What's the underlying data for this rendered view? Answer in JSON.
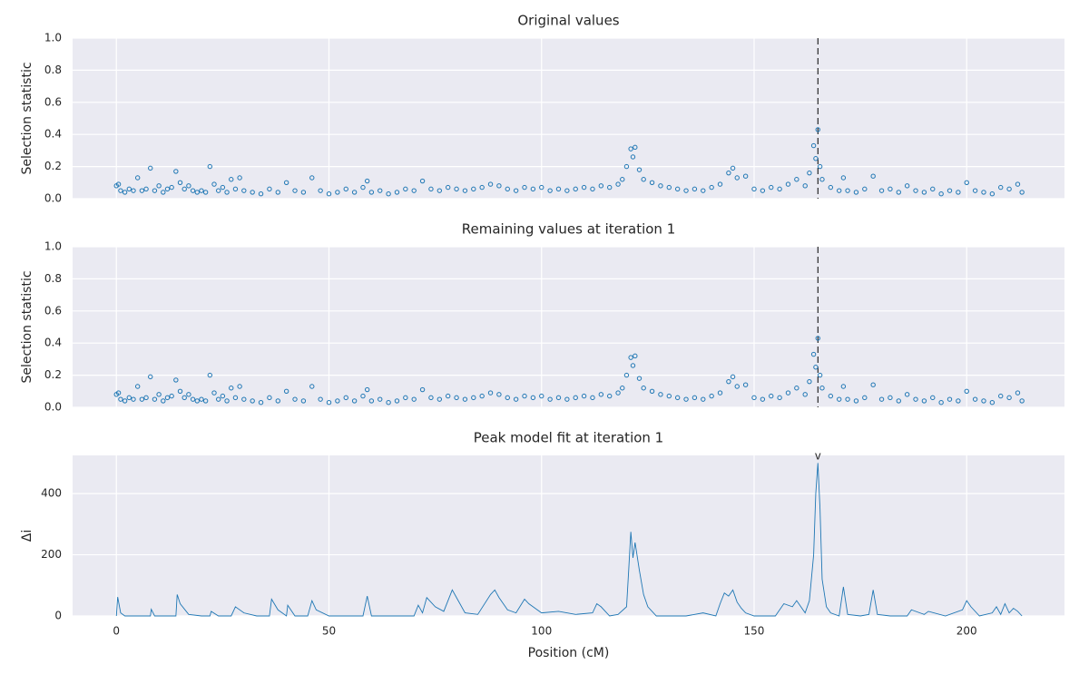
{
  "chart_data": [
    {
      "type": "scatter",
      "title": "Original values",
      "y_label": "Selection statistic",
      "color": "#1f77b4",
      "grid": true,
      "vline_x": 165,
      "x": [
        0,
        0.5,
        1,
        2,
        3,
        4,
        5,
        6,
        7,
        8,
        9,
        10,
        11,
        12,
        13,
        14,
        15,
        16,
        17,
        18,
        19,
        20,
        21,
        22,
        23,
        24,
        25,
        26,
        27,
        28,
        29,
        30,
        32,
        34,
        36,
        38,
        40,
        42,
        44,
        46,
        48,
        50,
        52,
        54,
        56,
        58,
        59,
        60,
        62,
        64,
        66,
        68,
        70,
        72,
        74,
        76,
        78,
        80,
        82,
        84,
        86,
        88,
        90,
        92,
        94,
        96,
        98,
        100,
        102,
        104,
        106,
        108,
        110,
        112,
        114,
        116,
        118,
        119,
        120,
        121,
        121.5,
        122,
        123,
        124,
        126,
        128,
        130,
        132,
        134,
        136,
        138,
        140,
        142,
        144,
        145,
        146,
        148,
        150,
        152,
        154,
        156,
        158,
        160,
        162,
        163,
        164,
        164.5,
        165,
        165.5,
        166,
        168,
        170,
        171,
        172,
        174,
        176,
        178,
        180,
        182,
        184,
        186,
        188,
        190,
        192,
        194,
        196,
        198,
        200,
        202,
        204,
        206,
        208,
        210,
        212,
        213
      ],
      "values": [
        0.08,
        0.09,
        0.05,
        0.04,
        0.06,
        0.05,
        0.13,
        0.05,
        0.06,
        0.19,
        0.05,
        0.08,
        0.04,
        0.06,
        0.07,
        0.17,
        0.1,
        0.06,
        0.08,
        0.05,
        0.04,
        0.05,
        0.04,
        0.2,
        0.09,
        0.05,
        0.07,
        0.04,
        0.12,
        0.06,
        0.13,
        0.05,
        0.04,
        0.03,
        0.06,
        0.04,
        0.1,
        0.05,
        0.04,
        0.13,
        0.05,
        0.03,
        0.04,
        0.06,
        0.04,
        0.07,
        0.11,
        0.04,
        0.05,
        0.03,
        0.04,
        0.06,
        0.05,
        0.11,
        0.06,
        0.05,
        0.07,
        0.06,
        0.05,
        0.06,
        0.07,
        0.09,
        0.08,
        0.06,
        0.05,
        0.07,
        0.06,
        0.07,
        0.05,
        0.06,
        0.05,
        0.06,
        0.07,
        0.06,
        0.08,
        0.07,
        0.09,
        0.12,
        0.2,
        0.31,
        0.26,
        0.32,
        0.18,
        0.12,
        0.1,
        0.08,
        0.07,
        0.06,
        0.05,
        0.06,
        0.05,
        0.07,
        0.09,
        0.16,
        0.19,
        0.13,
        0.14,
        0.06,
        0.05,
        0.07,
        0.06,
        0.09,
        0.12,
        0.08,
        0.16,
        0.33,
        0.25,
        0.43,
        0.2,
        0.12,
        0.07,
        0.05,
        0.13,
        0.05,
        0.04,
        0.06,
        0.14,
        0.05,
        0.06,
        0.04,
        0.08,
        0.05,
        0.04,
        0.06,
        0.03,
        0.05,
        0.04,
        0.1,
        0.05,
        0.04,
        0.03,
        0.07,
        0.06,
        0.09,
        0.04
      ],
      "xlim": [
        -10.3,
        223
      ],
      "xticks": [
        0,
        50,
        100,
        150,
        200
      ],
      "ylim": [
        0,
        1
      ],
      "yticks": [
        {
          "value": 0,
          "label": "0.0"
        },
        0.2,
        0.4,
        0.6,
        0.8,
        {
          "value": 1,
          "label": "1.0"
        }
      ]
    },
    {
      "type": "scatter",
      "title": "Remaining values at iteration 1",
      "y_label": "Selection statistic",
      "color": "#1f77b4",
      "grid": true,
      "vline_x": 165,
      "x": [
        0,
        0.5,
        1,
        2,
        3,
        4,
        5,
        6,
        7,
        8,
        9,
        10,
        11,
        12,
        13,
        14,
        15,
        16,
        17,
        18,
        19,
        20,
        21,
        22,
        23,
        24,
        25,
        26,
        27,
        28,
        29,
        30,
        32,
        34,
        36,
        38,
        40,
        42,
        44,
        46,
        48,
        50,
        52,
        54,
        56,
        58,
        59,
        60,
        62,
        64,
        66,
        68,
        70,
        72,
        74,
        76,
        78,
        80,
        82,
        84,
        86,
        88,
        90,
        92,
        94,
        96,
        98,
        100,
        102,
        104,
        106,
        108,
        110,
        112,
        114,
        116,
        118,
        119,
        120,
        121,
        121.5,
        122,
        123,
        124,
        126,
        128,
        130,
        132,
        134,
        136,
        138,
        140,
        142,
        144,
        145,
        146,
        148,
        150,
        152,
        154,
        156,
        158,
        160,
        162,
        163,
        164,
        164.5,
        165,
        165.5,
        166,
        168,
        170,
        171,
        172,
        174,
        176,
        178,
        180,
        182,
        184,
        186,
        188,
        190,
        192,
        194,
        196,
        198,
        200,
        202,
        204,
        206,
        208,
        210,
        212,
        213
      ],
      "values": [
        0.08,
        0.09,
        0.05,
        0.04,
        0.06,
        0.05,
        0.13,
        0.05,
        0.06,
        0.19,
        0.05,
        0.08,
        0.04,
        0.06,
        0.07,
        0.17,
        0.1,
        0.06,
        0.08,
        0.05,
        0.04,
        0.05,
        0.04,
        0.2,
        0.09,
        0.05,
        0.07,
        0.04,
        0.12,
        0.06,
        0.13,
        0.05,
        0.04,
        0.03,
        0.06,
        0.04,
        0.1,
        0.05,
        0.04,
        0.13,
        0.05,
        0.03,
        0.04,
        0.06,
        0.04,
        0.07,
        0.11,
        0.04,
        0.05,
        0.03,
        0.04,
        0.06,
        0.05,
        0.11,
        0.06,
        0.05,
        0.07,
        0.06,
        0.05,
        0.06,
        0.07,
        0.09,
        0.08,
        0.06,
        0.05,
        0.07,
        0.06,
        0.07,
        0.05,
        0.06,
        0.05,
        0.06,
        0.07,
        0.06,
        0.08,
        0.07,
        0.09,
        0.12,
        0.2,
        0.31,
        0.26,
        0.32,
        0.18,
        0.12,
        0.1,
        0.08,
        0.07,
        0.06,
        0.05,
        0.06,
        0.05,
        0.07,
        0.09,
        0.16,
        0.19,
        0.13,
        0.14,
        0.06,
        0.05,
        0.07,
        0.06,
        0.09,
        0.12,
        0.08,
        0.16,
        0.33,
        0.25,
        0.43,
        0.2,
        0.12,
        0.07,
        0.05,
        0.13,
        0.05,
        0.04,
        0.06,
        0.14,
        0.05,
        0.06,
        0.04,
        0.08,
        0.05,
        0.04,
        0.06,
        0.03,
        0.05,
        0.04,
        0.1,
        0.05,
        0.04,
        0.03,
        0.07,
        0.06,
        0.09,
        0.04
      ],
      "xlim": [
        -10.3,
        223
      ],
      "xticks": [
        0,
        50,
        100,
        150,
        200
      ],
      "ylim": [
        0,
        1
      ],
      "yticks": [
        {
          "value": 0,
          "label": "0.0"
        },
        0.2,
        0.4,
        0.6,
        0.8,
        {
          "value": 1,
          "label": "1.0"
        }
      ]
    },
    {
      "type": "line",
      "title": "Peak model fit at iteration 1",
      "y_label": "Δi",
      "x_label": "Position (cM)",
      "color": "#1f77b4",
      "grid": true,
      "peak_marker_x": 165,
      "peak_marker_label": "v",
      "x": [
        0,
        0.3,
        1,
        2,
        4,
        6,
        8,
        8.2,
        9,
        12,
        14,
        14.3,
        15,
        17,
        20,
        22,
        22.3,
        24,
        27,
        28,
        30,
        33,
        36,
        36.5,
        38,
        40,
        40.3,
        42,
        45,
        46,
        47,
        50,
        55,
        58,
        59,
        60,
        65,
        70,
        71,
        72,
        73,
        75,
        77,
        79,
        80,
        82,
        85,
        88,
        89,
        90,
        92,
        94,
        96,
        97,
        98,
        100,
        104,
        108,
        112,
        113,
        114,
        116,
        118,
        120,
        120.5,
        121,
        121.5,
        122,
        123,
        124,
        125,
        127,
        130,
        134,
        138,
        141,
        142,
        143,
        144,
        145,
        146,
        147,
        148,
        150,
        152,
        155,
        157,
        159,
        160,
        162,
        163,
        164,
        164.5,
        165,
        165.5,
        166,
        167,
        168,
        170,
        171,
        172,
        175,
        177,
        178,
        179,
        182,
        186,
        187,
        190,
        191,
        195,
        199,
        200,
        201,
        203,
        206,
        207,
        208,
        209,
        210,
        211,
        212,
        213
      ],
      "values": [
        0,
        62,
        10,
        0,
        0,
        0,
        0,
        22,
        0,
        0,
        0,
        70,
        40,
        5,
        0,
        0,
        15,
        0,
        0,
        30,
        10,
        0,
        0,
        55,
        20,
        0,
        35,
        0,
        0,
        50,
        20,
        0,
        0,
        0,
        65,
        0,
        0,
        0,
        35,
        10,
        60,
        30,
        15,
        85,
        60,
        10,
        5,
        70,
        85,
        60,
        20,
        10,
        55,
        40,
        30,
        10,
        15,
        5,
        10,
        40,
        30,
        0,
        5,
        30,
        150,
        275,
        190,
        240,
        150,
        70,
        30,
        0,
        0,
        0,
        10,
        0,
        40,
        75,
        65,
        85,
        45,
        25,
        10,
        0,
        0,
        0,
        40,
        30,
        50,
        10,
        50,
        200,
        400,
        500,
        350,
        120,
        30,
        10,
        0,
        95,
        5,
        0,
        5,
        85,
        5,
        0,
        0,
        20,
        5,
        15,
        0,
        20,
        50,
        30,
        0,
        10,
        30,
        5,
        40,
        10,
        25,
        15,
        0
      ],
      "xlim": [
        -10.3,
        223
      ],
      "xticks": [
        0,
        50,
        100,
        150,
        200
      ],
      "ylim": [
        0,
        525
      ],
      "yticks": [
        0,
        200,
        400
      ]
    }
  ]
}
